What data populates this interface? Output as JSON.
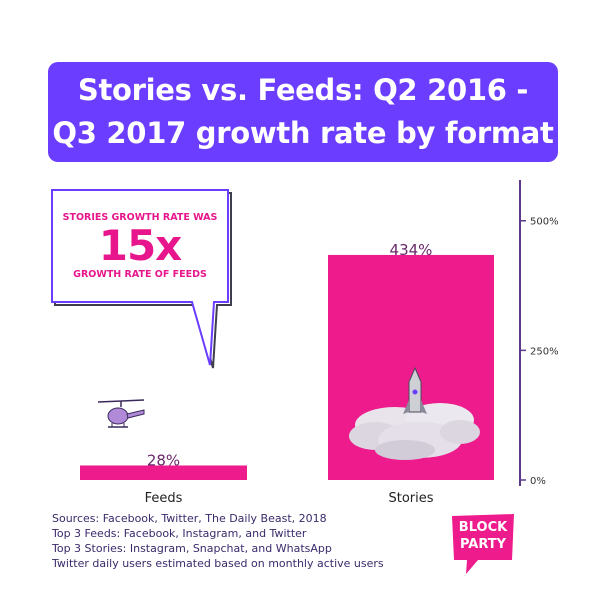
{
  "title": {
    "line1": "Stories vs. Feeds: Q2 2016 -",
    "line2": "Q3 2017 growth rate by format"
  },
  "callout": {
    "top": "STORIES GROWTH RATE WAS",
    "big": "15x",
    "bottom": "GROWTH RATE OF FEEDS"
  },
  "chart_data": {
    "type": "bar",
    "categories": [
      "Feeds",
      "Stories"
    ],
    "values": [
      28,
      434
    ],
    "value_labels": [
      "28%",
      "434%"
    ],
    "yticks": [
      0,
      250,
      500
    ],
    "ytick_labels": [
      "0%",
      "250%",
      "500%"
    ],
    "ylim": [
      0,
      540
    ],
    "title": "Stories vs. Feeds: Q2 2016 - Q3 2017 growth rate by format",
    "xlabel": "",
    "ylabel": "",
    "grid": false,
    "bar_color": "#ee1b8d"
  },
  "footer": [
    "Sources: Facebook, Twitter, The Daily Beast, 2018",
    "Top 3 Feeds: Facebook, Instagram, and Twitter",
    "Top 3 Stories: Instagram, Snapchat, and WhatsApp",
    "Twitter daily users estimated based on monthly active users"
  ],
  "logo": {
    "text_line1": "BLOCK",
    "text_line2": "PARTY",
    "color": "#ee1b8d"
  },
  "colors": {
    "title_bg": "#6a3dff",
    "accent": "#ee1b8d",
    "axis": "#5b3a8a"
  }
}
